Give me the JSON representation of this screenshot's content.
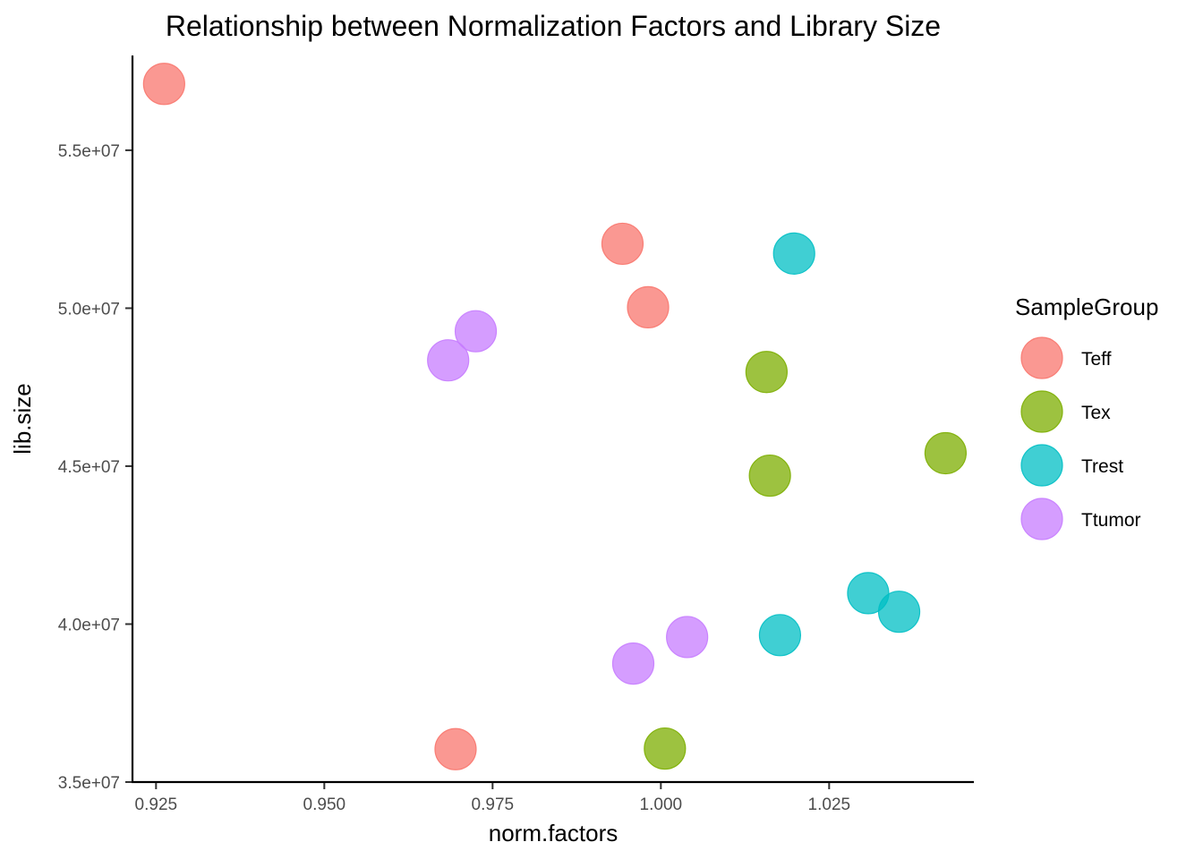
{
  "chart_data": {
    "type": "scatter",
    "title": "Relationship between Normalization Factors and Library Size",
    "xlabel": "norm.factors",
    "ylabel": "lib.size",
    "xlim": [
      0.9215,
      1.0465
    ],
    "ylim": [
      35000000,
      58000000
    ],
    "x_ticks": [
      0.925,
      0.95,
      0.975,
      1.0,
      1.025
    ],
    "x_tick_labels": [
      "0.925",
      "0.950",
      "0.975",
      "1.000",
      "1.025"
    ],
    "y_ticks": [
      35000000,
      40000000,
      45000000,
      50000000,
      55000000
    ],
    "y_tick_labels": [
      "3.5e+07",
      "4.0e+07",
      "4.5e+07",
      "5.0e+07",
      "5.5e+07"
    ],
    "grid": false,
    "legend": {
      "title": "SampleGroup",
      "placement": "right"
    },
    "series": [
      {
        "name": "Teff",
        "color": "#F8766D",
        "points": [
          {
            "x": 0.9262,
            "y": 57100000
          },
          {
            "x": 0.9943,
            "y": 52040000
          },
          {
            "x": 0.9981,
            "y": 50030000
          },
          {
            "x": 0.9695,
            "y": 36040000
          }
        ]
      },
      {
        "name": "Tex",
        "color": "#7CAE00",
        "points": [
          {
            "x": 1.0157,
            "y": 47980000
          },
          {
            "x": 1.0162,
            "y": 44700000
          },
          {
            "x": 1.0423,
            "y": 45410000
          },
          {
            "x": 1.0006,
            "y": 36060000
          }
        ]
      },
      {
        "name": "Trest",
        "color": "#00BFC4",
        "points": [
          {
            "x": 1.0198,
            "y": 51730000
          },
          {
            "x": 1.0308,
            "y": 40980000
          },
          {
            "x": 1.0354,
            "y": 40390000
          },
          {
            "x": 1.0177,
            "y": 39650000
          }
        ]
      },
      {
        "name": "Ttumor",
        "color": "#C77CFF",
        "points": [
          {
            "x": 0.9725,
            "y": 49270000
          },
          {
            "x": 0.9684,
            "y": 48350000
          },
          {
            "x": 1.0039,
            "y": 39590000
          },
          {
            "x": 0.9959,
            "y": 38750000
          }
        ]
      }
    ]
  }
}
